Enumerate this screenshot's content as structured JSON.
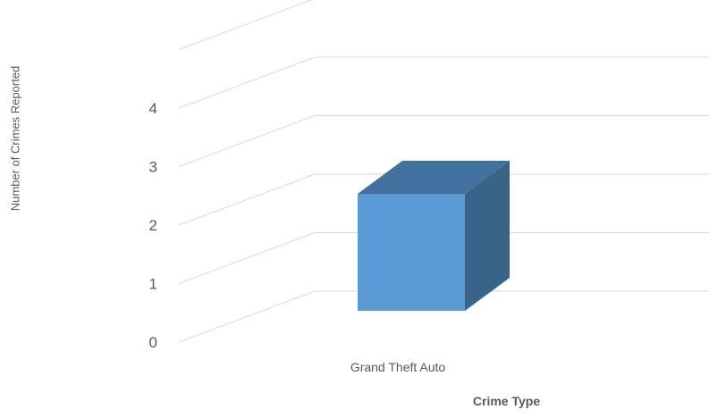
{
  "chart_data": {
    "type": "bar",
    "categories": [
      "Grand Theft Auto"
    ],
    "values": [
      2
    ],
    "xlabel": "Crime Type",
    "ylabel": "Number of Crimes Reported",
    "yticks": [
      "0",
      "1",
      "2",
      "3",
      "4"
    ],
    "ylim": [
      0,
      5
    ],
    "grid": true,
    "legend": "none",
    "colors": {
      "bar_front": "#5b9bd5",
      "bar_top": "#41729f",
      "bar_side": "#3a6388",
      "grid": "#d9d9d9",
      "tick_text": "#595959"
    }
  }
}
